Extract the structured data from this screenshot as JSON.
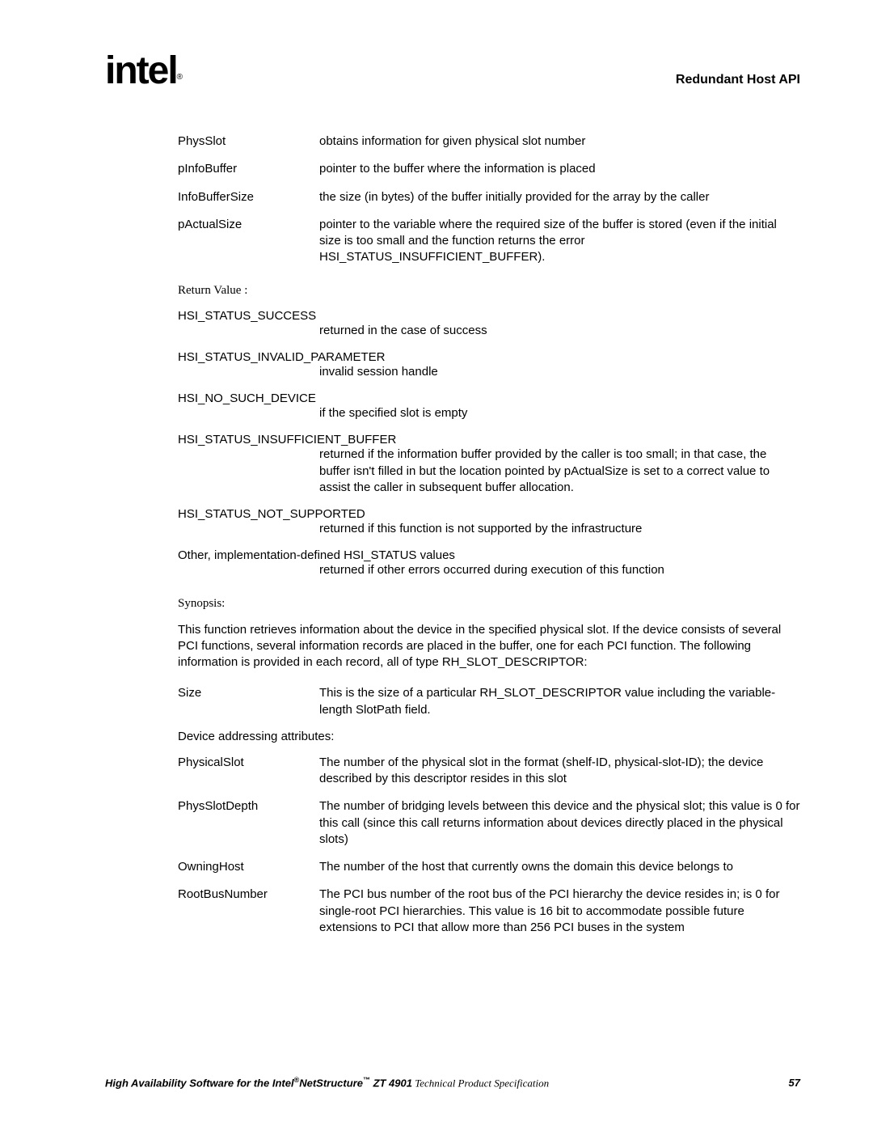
{
  "header": {
    "logo_text": "intel",
    "logo_sub": "®",
    "doc_title": "Redundant Host API"
  },
  "params": [
    {
      "name": "PhysSlot",
      "desc": "obtains information for given physical slot number"
    },
    {
      "name": "pInfoBuffer",
      "desc": "pointer to the buffer where the information is placed"
    },
    {
      "name": "InfoBufferSize",
      "desc": "the size (in bytes) of the buffer initially provided for the array by the caller"
    },
    {
      "name": "pActualSize",
      "desc": "pointer to the variable where the required size of the buffer is stored (even if the initial size is too small and the function returns the error HSI_STATUS_INSUFFICIENT_BUFFER)."
    }
  ],
  "return_value_label": "Return Value :",
  "statuses": [
    {
      "name": "HSI_STATUS_SUCCESS",
      "desc": "returned in the case of success"
    },
    {
      "name": "HSI_STATUS_INVALID_PARAMETER",
      "desc": "invalid session handle"
    },
    {
      "name": "HSI_NO_SUCH_DEVICE",
      "desc": "if the specified slot is empty"
    },
    {
      "name": "HSI_STATUS_INSUFFICIENT_BUFFER",
      "desc": "returned if the information buffer provided by the caller is too small; in that case, the buffer isn't filled in but the location pointed by pActualSize is set to a correct value to assist the caller in subsequent buffer allocation."
    },
    {
      "name": "HSI_STATUS_NOT_SUPPORTED",
      "desc": "returned if this function is not supported by the infrastructure"
    },
    {
      "name": "Other, implementation-defined HSI_STATUS values",
      "desc": "returned if other errors occurred during execution of this function"
    }
  ],
  "synopsis_label": "Synopsis:",
  "synopsis_text": "This function retrieves information about the device in the specified physical slot. If the device consists of several PCI functions, several information records are placed in the buffer, one for each PCI function. The following information is provided in each record, all of type RH_SLOT_DESCRIPTOR:",
  "size_param": {
    "name": "Size",
    "desc": "This is the size of a particular RH_SLOT_DESCRIPTOR value including the variable-length SlotPath field."
  },
  "addressing_label": "Device addressing attributes:",
  "addressing_params": [
    {
      "name": "PhysicalSlot",
      "desc": "The number of the physical slot in the format (shelf-ID, physical-slot-ID); the device described by this descriptor resides in this slot"
    },
    {
      "name": "PhysSlotDepth",
      "desc": "The number of bridging levels between this device and the physical slot; this value is 0 for this call (since this call returns information about devices directly placed in the physical slots)"
    },
    {
      "name": "OwningHost",
      "desc": "The number of the host that currently owns the domain this device belongs to"
    },
    {
      "name": "RootBusNumber",
      "desc": "The PCI bus number of the root bus of the PCI hierarchy the device resides in; is 0 for single-root PCI hierarchies. This value is 16 bit to accommodate possible future extensions to PCI that allow more than 256 PCI buses in the system"
    }
  ],
  "footer": {
    "product_prefix": "High Availability Software for the Intel",
    "reg1": "®",
    "netstructure": "NetStructure",
    "tm": "™",
    "model": " ZT 4901",
    "spec": " Technical Product Specification",
    "page": "57"
  }
}
